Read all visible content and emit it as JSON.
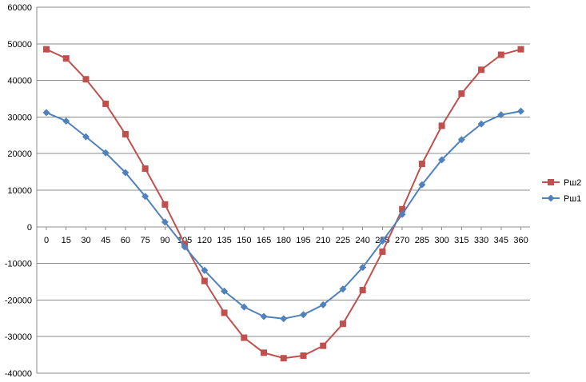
{
  "chart_data": {
    "type": "line",
    "x": [
      0,
      15,
      30,
      45,
      60,
      75,
      90,
      105,
      120,
      135,
      150,
      165,
      180,
      195,
      210,
      225,
      240,
      255,
      270,
      285,
      300,
      315,
      330,
      345,
      360
    ],
    "x_tick_labels": [
      "0",
      "15",
      "30",
      "45",
      "60",
      "75",
      "90",
      "105",
      "120",
      "135",
      "150",
      "165",
      "180",
      "195",
      "210",
      "225",
      "240",
      "255",
      "270",
      "285",
      "300",
      "315",
      "330",
      "345",
      "360"
    ],
    "y_ticks": [
      60000,
      50000,
      40000,
      30000,
      20000,
      10000,
      0,
      -10000,
      -20000,
      -30000,
      -40000
    ],
    "ylim": [
      -40000,
      60000
    ],
    "grid": true,
    "legend_position": "right",
    "series": [
      {
        "name": "Рш2",
        "color": "#c0504d",
        "marker": "square",
        "values": [
          48500,
          46000,
          40300,
          33600,
          25300,
          15900,
          6100,
          -4700,
          -14800,
          -23500,
          -30300,
          -34400,
          -35900,
          -35200,
          -32500,
          -26500,
          -17300,
          -6800,
          4800,
          17200,
          27600,
          36400,
          42900,
          47000,
          48500
        ]
      },
      {
        "name": "Рш1",
        "color": "#4f81bd",
        "marker": "diamond",
        "values": [
          31200,
          28900,
          24600,
          20200,
          14800,
          8300,
          1300,
          -5500,
          -11900,
          -17600,
          -21900,
          -24500,
          -25100,
          -24000,
          -21300,
          -17000,
          -11100,
          -3900,
          3400,
          11500,
          18300,
          23800,
          28100,
          30600,
          31600
        ]
      }
    ]
  }
}
